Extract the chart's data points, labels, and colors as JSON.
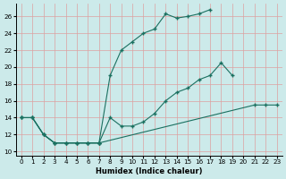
{
  "xlabel": "Humidex (Indice chaleur)",
  "bg_color": "#cceaea",
  "grid_color": "#dda0a0",
  "line_color": "#1a7060",
  "xlim": [
    -0.5,
    23.5
  ],
  "ylim": [
    9.5,
    27.5
  ],
  "xticks": [
    0,
    1,
    2,
    3,
    4,
    5,
    6,
    7,
    8,
    9,
    10,
    11,
    12,
    13,
    14,
    15,
    16,
    17,
    18,
    19,
    20,
    21,
    22,
    23
  ],
  "yticks": [
    10,
    12,
    14,
    16,
    18,
    20,
    22,
    24,
    26
  ],
  "line1": {
    "x": [
      0,
      1,
      2,
      3,
      4,
      5,
      6,
      7,
      8,
      9,
      10,
      11,
      12,
      13,
      14,
      15,
      16,
      17
    ],
    "y": [
      14,
      14,
      12,
      11,
      11,
      11,
      11,
      11,
      19,
      22,
      23,
      24,
      24.5,
      26.3,
      25.8,
      26,
      26.3,
      26.8
    ]
  },
  "line2": {
    "x": [
      0,
      1,
      2,
      3,
      4,
      5,
      6,
      7,
      8,
      9,
      10,
      11,
      12,
      13,
      14,
      15,
      16,
      17,
      18,
      19
    ],
    "y": [
      14,
      14,
      12,
      11,
      11,
      11,
      11,
      11,
      14,
      13,
      13,
      13.5,
      14.5,
      16,
      17,
      17.5,
      18.5,
      19,
      20.5,
      19
    ]
  },
  "line3": {
    "x": [
      0,
      1,
      2,
      3,
      4,
      5,
      6,
      7,
      21,
      22,
      23
    ],
    "y": [
      14,
      14,
      12,
      11,
      11,
      11,
      11,
      11,
      15.5,
      15.5,
      15.5
    ]
  }
}
